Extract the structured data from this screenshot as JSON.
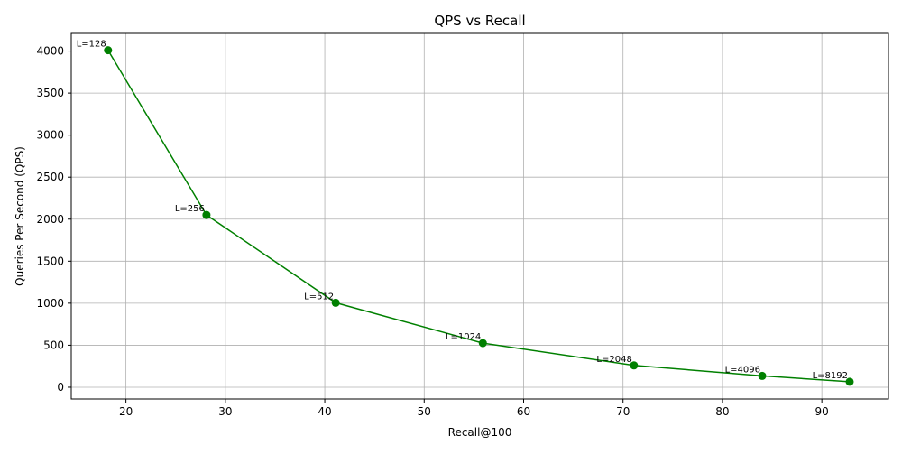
{
  "chart_data": {
    "type": "line",
    "title": "QPS vs Recall",
    "xlabel": "Recall@100",
    "ylabel": "Queries Per Second (QPS)",
    "xlim": [
      14.5,
      96.7
    ],
    "ylim": [
      -140,
      4210
    ],
    "xticks": [
      20,
      30,
      40,
      50,
      60,
      70,
      80,
      90
    ],
    "yticks": [
      0,
      500,
      1000,
      1500,
      2000,
      2500,
      3000,
      3500,
      4000
    ],
    "grid": true,
    "series": [
      {
        "color": "#008000",
        "marker": "circle",
        "points": [
          {
            "x": 18.2,
            "y": 4010,
            "label": "L=128"
          },
          {
            "x": 28.1,
            "y": 2050,
            "label": "L=256"
          },
          {
            "x": 41.1,
            "y": 1005,
            "label": "L=512"
          },
          {
            "x": 55.9,
            "y": 525,
            "label": "L=1024"
          },
          {
            "x": 71.1,
            "y": 260,
            "label": "L=2048"
          },
          {
            "x": 84.0,
            "y": 135,
            "label": "L=4096"
          },
          {
            "x": 92.8,
            "y": 65,
            "label": "L=8192"
          }
        ]
      }
    ]
  }
}
